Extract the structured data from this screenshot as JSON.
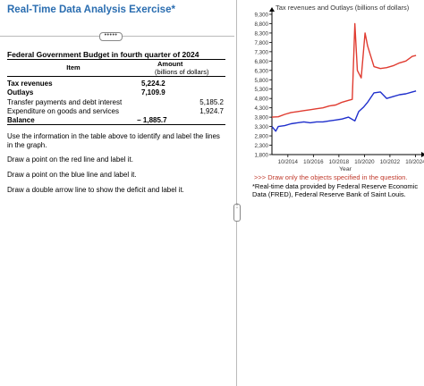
{
  "exercise": {
    "title": "Real-Time Data Analysis Exercise*",
    "collapse_label": "•••••"
  },
  "table": {
    "title": "Federal Government Budget in fourth quarter of 2024",
    "col_item": "Item",
    "col_amount": "Amount",
    "col_amount_unit": "(billions of dollars)",
    "rows": [
      {
        "label": "Tax revenues",
        "value": "5,224.2",
        "sub": ""
      },
      {
        "label": "Outlays",
        "value": "7,109.9",
        "sub": ""
      },
      {
        "label": "Transfer payments and debt interest",
        "value": "",
        "sub": "5,185.2"
      },
      {
        "label": "Expenditure on goods and services",
        "value": "",
        "sub": "1,924.7"
      },
      {
        "label": "Balance",
        "value": "− 1,885.7",
        "sub": ""
      }
    ]
  },
  "instructions": [
    "Use the information in the table above to identify and label the lines in the graph.",
    "Draw a point on the red line and label it.",
    "Draw a point on the blue line and label it.",
    "Draw a double arrow line to show the deficit and label it."
  ],
  "divider": {
    "handle_label": "⋮"
  },
  "chart_data": {
    "type": "line",
    "title": "Tax revenues and Outlays (billions of dollars)",
    "xlabel": "Year",
    "ylabel": "",
    "x_ticks": [
      "10/2014",
      "10/2016",
      "10/2018",
      "10/2020",
      "10/2022",
      "10/2024"
    ],
    "y_ticks": [
      "9,300",
      "8,800",
      "8,300",
      "7,800",
      "7,300",
      "6,800",
      "6,300",
      "5,800",
      "5,300",
      "4,800",
      "4,300",
      "3,800",
      "3,300",
      "2,800",
      "2,300",
      "1,800"
    ],
    "xlim": [
      2013.5,
      2025.0
    ],
    "ylim": [
      1800,
      9300
    ],
    "grid": false,
    "series": [
      {
        "color": "#e03c31",
        "x": [
          2013.5,
          2014.0,
          2014.5,
          2015.0,
          2015.5,
          2016.0,
          2016.5,
          2017.0,
          2017.5,
          2018.0,
          2018.5,
          2019.0,
          2019.5,
          2019.8,
          2020.0,
          2020.2,
          2020.5,
          2020.8,
          2021.0,
          2021.5,
          2022.0,
          2022.5,
          2023.0,
          2023.5,
          2024.0,
          2024.5,
          2024.8
        ],
        "y": [
          3800,
          3820,
          3950,
          4050,
          4100,
          4150,
          4200,
          4250,
          4300,
          4400,
          4450,
          4600,
          4700,
          4750,
          8800,
          6300,
          5900,
          8300,
          7600,
          6500,
          6400,
          6450,
          6550,
          6700,
          6800,
          7050,
          7100
        ]
      },
      {
        "color": "#1f2fcc",
        "x": [
          2013.5,
          2013.8,
          2014.0,
          2014.5,
          2015.0,
          2015.5,
          2016.0,
          2016.5,
          2017.0,
          2017.5,
          2018.0,
          2018.5,
          2019.0,
          2019.5,
          2020.0,
          2020.3,
          2020.7,
          2021.0,
          2021.5,
          2022.0,
          2022.5,
          2023.0,
          2023.5,
          2024.0,
          2024.5,
          2024.8
        ],
        "y": [
          3300,
          3050,
          3300,
          3350,
          3450,
          3500,
          3550,
          3500,
          3550,
          3550,
          3600,
          3650,
          3700,
          3800,
          3600,
          4100,
          4350,
          4600,
          5100,
          5150,
          4800,
          4900,
          5000,
          5050,
          5150,
          5200
        ]
      }
    ]
  },
  "chart_note": ">>> Draw only the objects specified in the question.",
  "credit": "*Real-time data provided by Federal Reserve Economic Data (FRED), Federal Reserve Bank of Saint Louis."
}
